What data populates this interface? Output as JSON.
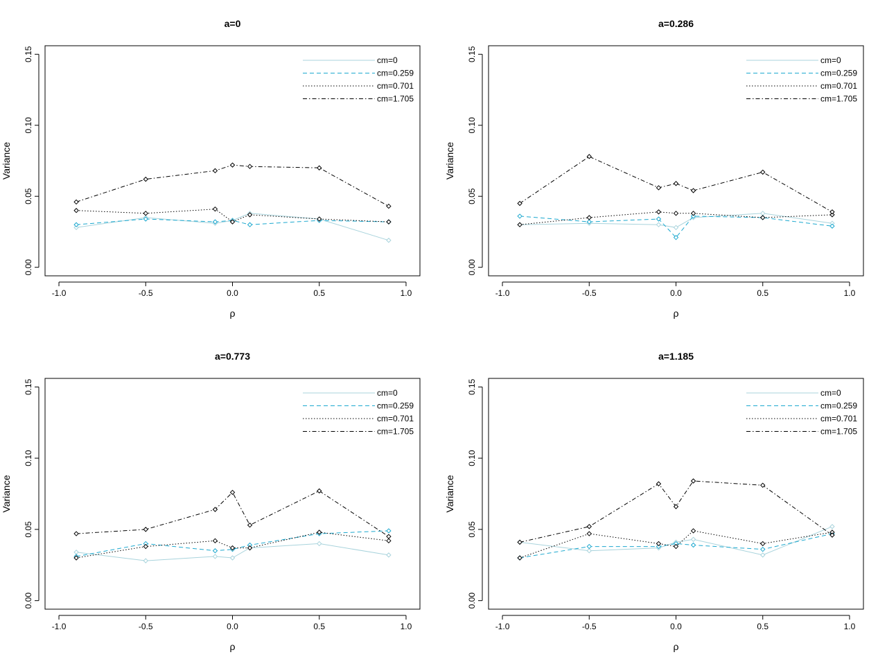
{
  "chart_data": [
    {
      "type": "line",
      "title": "a=0",
      "xlabel": "ρ",
      "ylabel": "Variance",
      "xlim": [
        -1.0,
        1.0
      ],
      "ylim": [
        0.0,
        0.15
      ],
      "xticks": [
        "-1.0",
        "-0.5",
        "0.0",
        "0.5",
        "1.0"
      ],
      "yticks": [
        "0.00",
        "0.05",
        "0.10",
        "0.15"
      ],
      "legend_position": "top-right",
      "x": [
        -0.9,
        -0.5,
        -0.1,
        0.0,
        0.1,
        0.5,
        0.9
      ],
      "series": [
        {
          "name": "cm=0",
          "values": [
            0.028,
            0.035,
            0.031,
            0.033,
            0.038,
            0.034,
            0.019
          ]
        },
        {
          "name": "cm=0.259",
          "values": [
            0.03,
            0.034,
            0.032,
            0.033,
            0.03,
            0.033,
            0.032
          ]
        },
        {
          "name": "cm=0.701",
          "values": [
            0.04,
            0.038,
            0.041,
            0.032,
            0.037,
            0.034,
            0.032
          ]
        },
        {
          "name": "cm=1.705",
          "values": [
            0.046,
            0.062,
            0.068,
            0.072,
            0.071,
            0.07,
            0.043
          ]
        }
      ]
    },
    {
      "type": "line",
      "title": "a=0.286",
      "xlabel": "ρ",
      "ylabel": "Variance",
      "xlim": [
        -1.0,
        1.0
      ],
      "ylim": [
        0.0,
        0.15
      ],
      "xticks": [
        "-1.0",
        "-0.5",
        "0.0",
        "0.5",
        "1.0"
      ],
      "yticks": [
        "0.00",
        "0.05",
        "0.10",
        "0.15"
      ],
      "legend_position": "top-right",
      "x": [
        -0.9,
        -0.5,
        -0.1,
        0.0,
        0.1,
        0.5,
        0.9
      ],
      "series": [
        {
          "name": "cm=0",
          "values": [
            0.03,
            0.031,
            0.03,
            0.028,
            0.035,
            0.038,
            0.031
          ]
        },
        {
          "name": "cm=0.259",
          "values": [
            0.036,
            0.032,
            0.034,
            0.021,
            0.036,
            0.035,
            0.029
          ]
        },
        {
          "name": "cm=0.701",
          "values": [
            0.03,
            0.035,
            0.039,
            0.038,
            0.038,
            0.035,
            0.037
          ]
        },
        {
          "name": "cm=1.705",
          "values": [
            0.045,
            0.078,
            0.056,
            0.059,
            0.054,
            0.067,
            0.039
          ]
        }
      ]
    },
    {
      "type": "line",
      "title": "a=0.773",
      "xlabel": "ρ",
      "ylabel": "Variance",
      "xlim": [
        -1.0,
        1.0
      ],
      "ylim": [
        0.0,
        0.15
      ],
      "xticks": [
        "-1.0",
        "-0.5",
        "0.0",
        "0.5",
        "1.0"
      ],
      "yticks": [
        "0.00",
        "0.05",
        "0.10",
        "0.15"
      ],
      "legend_position": "top-right",
      "x": [
        -0.9,
        -0.5,
        -0.1,
        0.0,
        0.1,
        0.5,
        0.9
      ],
      "series": [
        {
          "name": "cm=0",
          "values": [
            0.034,
            0.028,
            0.031,
            0.03,
            0.037,
            0.04,
            0.032
          ]
        },
        {
          "name": "cm=0.259",
          "values": [
            0.031,
            0.04,
            0.035,
            0.036,
            0.039,
            0.047,
            0.049
          ]
        },
        {
          "name": "cm=0.701",
          "values": [
            0.03,
            0.038,
            0.042,
            0.037,
            0.037,
            0.048,
            0.042
          ]
        },
        {
          "name": "cm=1.705",
          "values": [
            0.047,
            0.05,
            0.064,
            0.076,
            0.053,
            0.077,
            0.045
          ]
        }
      ]
    },
    {
      "type": "line",
      "title": "a=1.185",
      "xlabel": "ρ",
      "ylabel": "Variance",
      "xlim": [
        -1.0,
        1.0
      ],
      "ylim": [
        0.0,
        0.15
      ],
      "xticks": [
        "-1.0",
        "-0.5",
        "0.0",
        "0.5",
        "1.0"
      ],
      "yticks": [
        "0.00",
        "0.05",
        "0.10",
        "0.15"
      ],
      "legend_position": "top-right",
      "x": [
        -0.9,
        -0.5,
        -0.1,
        0.0,
        0.1,
        0.5,
        0.9
      ],
      "series": [
        {
          "name": "cm=0",
          "values": [
            0.041,
            0.035,
            0.037,
            0.041,
            0.043,
            0.032,
            0.052
          ]
        },
        {
          "name": "cm=0.259",
          "values": [
            0.03,
            0.038,
            0.038,
            0.04,
            0.039,
            0.036,
            0.047
          ]
        },
        {
          "name": "cm=0.701",
          "values": [
            0.03,
            0.047,
            0.04,
            0.038,
            0.049,
            0.04,
            0.048
          ]
        },
        {
          "name": "cm=1.705",
          "values": [
            0.041,
            0.052,
            0.082,
            0.066,
            0.084,
            0.081,
            0.046
          ]
        }
      ]
    }
  ],
  "series_styles": [
    {
      "color": "#a8d3dc",
      "dash": "none"
    },
    {
      "color": "#1ba8cf",
      "dash": "6,4"
    },
    {
      "color": "#000000",
      "dash": "1.5,2.5"
    },
    {
      "color": "#000000",
      "dash": "6,3,1.5,3"
    }
  ]
}
